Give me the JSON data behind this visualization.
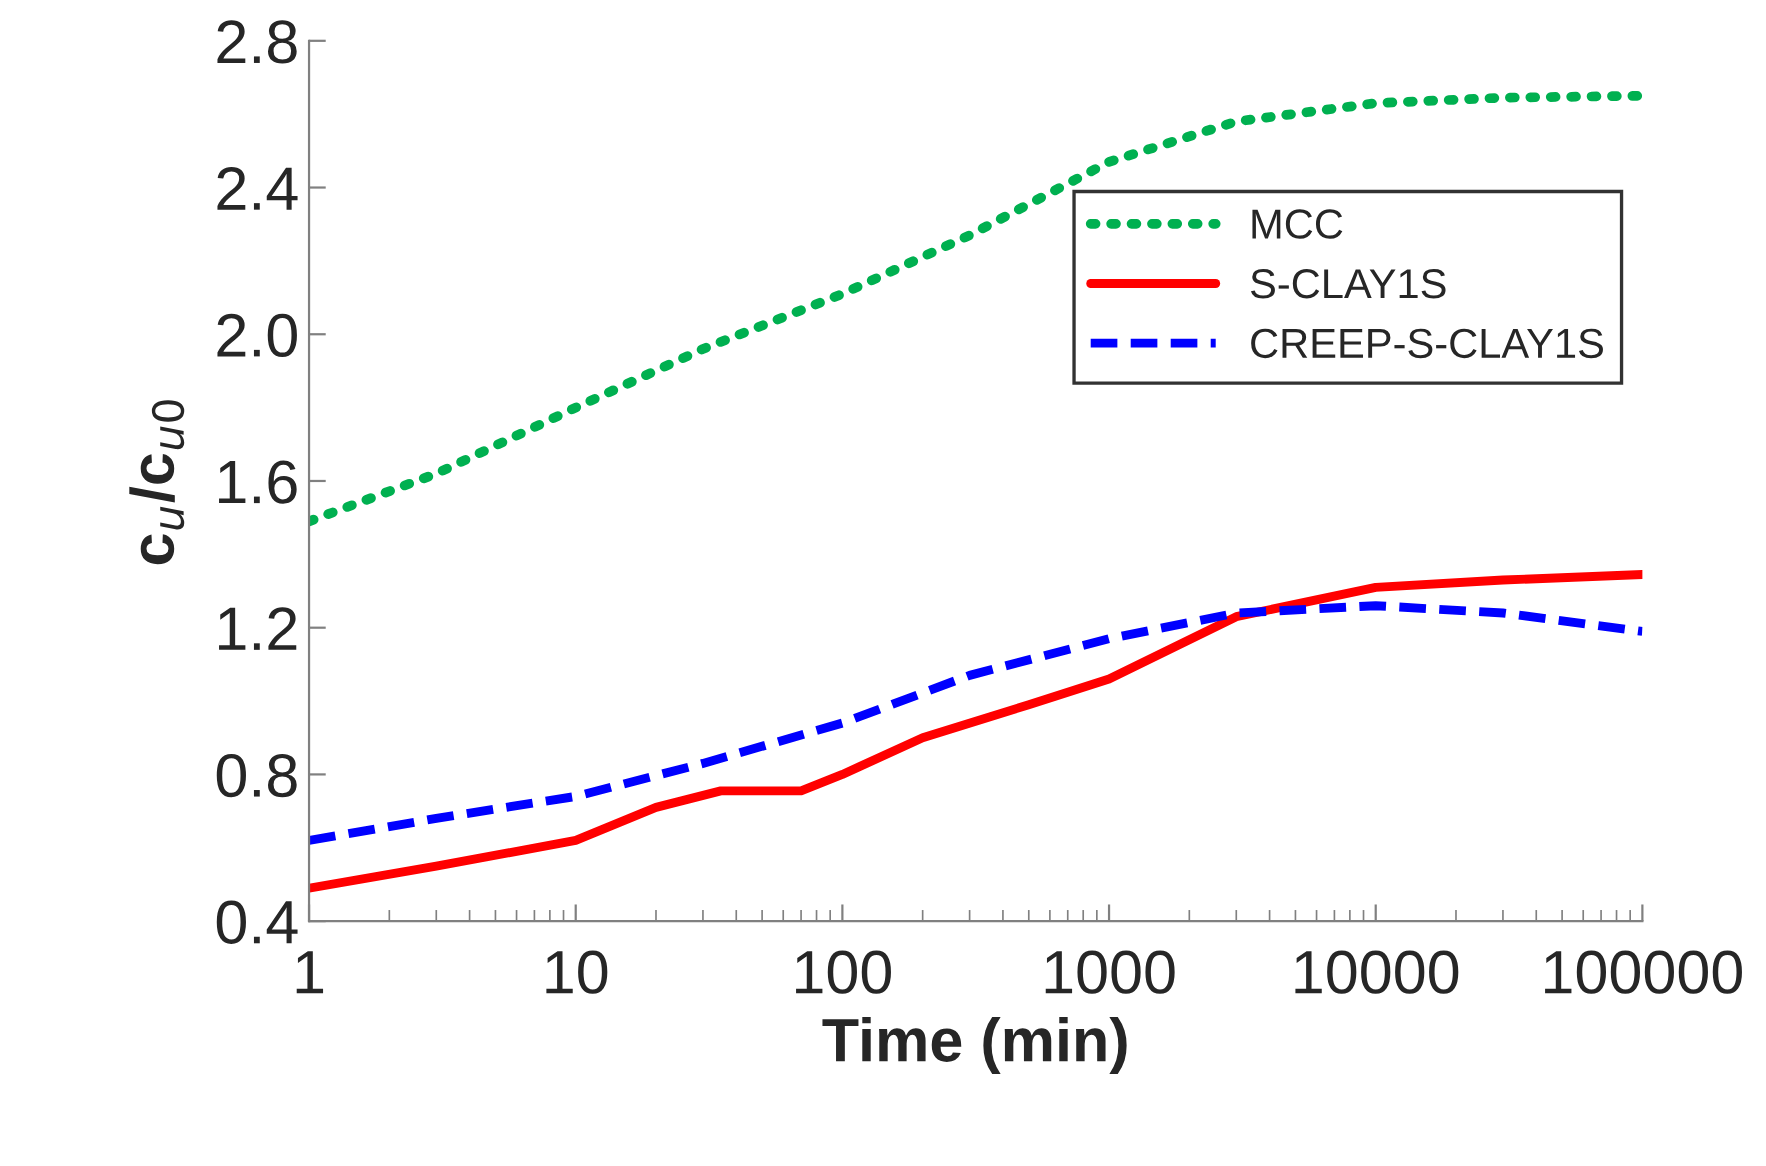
{
  "chart_data": {
    "type": "line",
    "xlabel": "Time (min)",
    "ylabel": "c$_{u}$/c$_{u0}$",
    "log": "x",
    "grid": false,
    "legend": "right",
    "marker": "none",
    "xlim": [
      1,
      100000
    ],
    "xticks": [
      1,
      10,
      100,
      1000,
      10000,
      100000
    ],
    "ylim": [
      0.4,
      2.8
    ],
    "yticks": [
      0.4,
      0.8,
      1.2,
      1.6,
      {
        "value": 2,
        "label": "2.0"
      },
      2.4,
      2.8
    ],
    "series": [
      {
        "name": "MCC",
        "color": "#00b050",
        "line_style": "dotted",
        "x": [
          1,
          3,
          10,
          30,
          100,
          300,
          1000,
          3000,
          10000,
          30000,
          100000
        ],
        "values": [
          1.49,
          1.62,
          1.8,
          1.96,
          2.11,
          2.27,
          2.47,
          2.58,
          2.63,
          2.645,
          2.65
        ]
      },
      {
        "name": "S-CLAY1S",
        "color": "#ff0000",
        "line_style": "solid",
        "x": [
          1,
          3,
          10,
          20,
          35,
          70,
          100,
          200,
          500,
          1000,
          3000,
          10000,
          30000,
          100000
        ],
        "values": [
          0.49,
          0.55,
          0.62,
          0.71,
          0.755,
          0.755,
          0.8,
          0.9,
          0.99,
          1.06,
          1.23,
          1.31,
          1.33,
          1.345
        ]
      },
      {
        "name": "CREEP-S-CLAY1S",
        "color": "#0000ff",
        "line_style": "dashed",
        "x": [
          1,
          3,
          10,
          30,
          100,
          300,
          1000,
          3000,
          10000,
          30000,
          100000
        ],
        "values": [
          0.62,
          0.68,
          0.74,
          0.83,
          0.94,
          1.07,
          1.17,
          1.24,
          1.26,
          1.24,
          1.19
        ]
      }
    ]
  }
}
